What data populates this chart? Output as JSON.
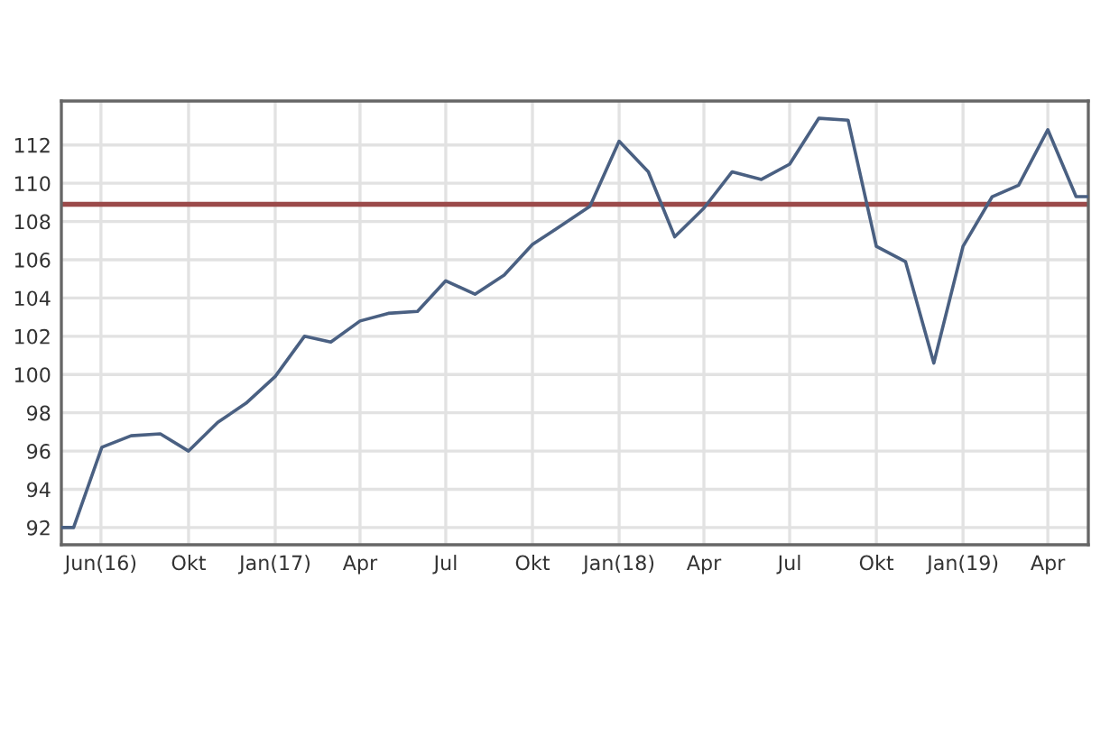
{
  "chart_data": {
    "type": "line",
    "x": [
      "2016-05-19",
      "2016-06-01",
      "2016-07-01",
      "2016-08-01",
      "2016-09-01",
      "2016-10-01",
      "2016-11-01",
      "2016-12-01",
      "2017-01-01",
      "2017-02-01",
      "2017-03-01",
      "2017-04-01",
      "2017-05-01",
      "2017-06-01",
      "2017-07-01",
      "2017-08-01",
      "2017-09-01",
      "2017-10-01",
      "2017-11-01",
      "2017-12-01",
      "2018-01-01",
      "2018-02-01",
      "2018-03-01",
      "2018-04-01",
      "2018-05-01",
      "2018-06-01",
      "2018-07-01",
      "2018-08-01",
      "2018-09-01",
      "2018-10-01",
      "2018-11-01",
      "2018-12-01",
      "2019-01-01",
      "2019-02-01",
      "2019-03-01",
      "2019-04-01",
      "2019-05-01",
      "2019-05-14"
    ],
    "series": [
      {
        "color": "#4a6082",
        "values": [
          92.0,
          92.0,
          96.2,
          96.8,
          96.9,
          96.0,
          97.5,
          98.5,
          99.9,
          102.0,
          101.7,
          102.8,
          103.2,
          103.3,
          104.9,
          104.2,
          105.2,
          106.8,
          107.8,
          108.8,
          112.2,
          110.6,
          107.2,
          108.7,
          110.6,
          110.2,
          111.0,
          113.4,
          113.3,
          106.7,
          105.9,
          100.6,
          106.7,
          109.3,
          109.9,
          112.8,
          109.3,
          109.3
        ]
      }
    ],
    "xlim": [
      "2016-05-19",
      "2019-05-14"
    ],
    "xticks": [
      {
        "value": "2016-06-30",
        "label": "Jun(16)"
      },
      {
        "value": "2016-10-01",
        "label": "Okt"
      },
      {
        "value": "2017-01-01",
        "label": "Jan(17)"
      },
      {
        "value": "2017-04-01",
        "label": "Apr"
      },
      {
        "value": "2017-07-01",
        "label": "Jul"
      },
      {
        "value": "2017-10-01",
        "label": "Okt"
      },
      {
        "value": "2018-01-01",
        "label": "Jan(18)"
      },
      {
        "value": "2018-04-01",
        "label": "Apr"
      },
      {
        "value": "2018-07-01",
        "label": "Jul"
      },
      {
        "value": "2018-10-01",
        "label": "Okt"
      },
      {
        "value": "2019-01-01",
        "label": "Jan(19)"
      },
      {
        "value": "2019-04-01",
        "label": "Apr"
      }
    ],
    "ylim": [
      91.1,
      114.3
    ],
    "yticks": [
      92,
      94,
      96,
      98,
      100,
      102,
      104,
      106,
      108,
      110,
      112
    ],
    "grid": true,
    "ref_lines": [
      {
        "axis": "y",
        "value": 108.9,
        "color": "#9b4a4a"
      }
    ]
  }
}
